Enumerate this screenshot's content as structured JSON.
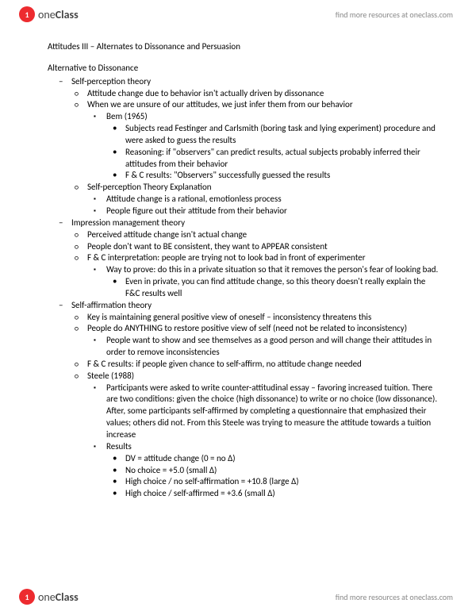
{
  "brand": {
    "logo_char": "1",
    "name_one": "one",
    "name_class": "Class"
  },
  "resources_link": "find more resources at oneclass.com",
  "title": "Attitudes III – Alternates to Dissonance and Persuasion",
  "section": "Alternative to Dissonance",
  "items": [
    {
      "lvl": 1,
      "b": "dash",
      "t": "Self-perception theory"
    },
    {
      "lvl": 2,
      "b": "circ",
      "t": "Attitude change due to behavior isn't actually driven by dissonance"
    },
    {
      "lvl": 2,
      "b": "circ",
      "t": "When we are unsure of our attitudes, we just infer them from our behavior"
    },
    {
      "lvl": 3,
      "b": "sq",
      "t": "Bem (1965)"
    },
    {
      "lvl": 4,
      "b": "dot",
      "t": "Subjects read Festinger and Carlsmith (boring task and lying experiment) procedure and were asked to guess the results"
    },
    {
      "lvl": 4,
      "b": "dot",
      "t": "Reasoning: if \"observers\" can predict results, actual subjects probably inferred their attitudes from their behavior"
    },
    {
      "lvl": 4,
      "b": "dot",
      "t": "F & C results: \"Observers\" successfully guessed the results"
    },
    {
      "lvl": 2,
      "b": "circ",
      "t": "Self-perception Theory Explanation"
    },
    {
      "lvl": 3,
      "b": "sq",
      "t": "Attitude change is a rational, emotionless process"
    },
    {
      "lvl": 3,
      "b": "sq",
      "t": "People figure out their attitude from their behavior"
    },
    {
      "lvl": 1,
      "b": "dash",
      "t": "Impression management theory"
    },
    {
      "lvl": 2,
      "b": "circ",
      "t": "Perceived attitude change isn't actual change"
    },
    {
      "lvl": 2,
      "b": "circ",
      "t": "People don't want to BE consistent, they want to APPEAR consistent"
    },
    {
      "lvl": 2,
      "b": "circ",
      "t": "F & C interpretation: people are trying not to look bad in front of experimenter"
    },
    {
      "lvl": 3,
      "b": "sq",
      "t": "Way to prove: do this in a private situation so that it removes the person's fear of looking bad."
    },
    {
      "lvl": 4,
      "b": "dot",
      "t": "Even in private, you can find attitude change, so this theory doesn't really explain the F&C results well"
    },
    {
      "lvl": 1,
      "b": "dash",
      "t": "Self-affirmation theory"
    },
    {
      "lvl": 2,
      "b": "circ",
      "t": "Key is maintaining general positive view of oneself – inconsistency threatens this"
    },
    {
      "lvl": 2,
      "b": "circ",
      "t": "People do ANYTHING to restore positive view of self (need not be related to inconsistency)"
    },
    {
      "lvl": 3,
      "b": "sq",
      "t": "People want to show and see themselves as a good person and will change their attitudes in order to remove inconsistencies"
    },
    {
      "lvl": 2,
      "b": "circ",
      "t": "F & C results: if people given chance to self-affirm, no attitude change needed"
    },
    {
      "lvl": 2,
      "b": "circ",
      "t": "Steele (1988)"
    },
    {
      "lvl": 3,
      "b": "sq",
      "t": "Participants were asked to write counter-attitudinal essay – favoring increased tuition. There are two conditions: given the choice (high dissonance) to write or no choice (low dissonance). After, some participants self-affirmed by completing a questionnaire that emphasized their values; others did not. From this Steele was trying to measure the attitude towards a tuition increase"
    },
    {
      "lvl": 3,
      "b": "sq",
      "t": "Results"
    },
    {
      "lvl": 4,
      "b": "dot",
      "t": "DV = attitude change (0 = no Δ)"
    },
    {
      "lvl": 4,
      "b": "dot",
      "t": "No choice = +5.0 (small Δ)"
    },
    {
      "lvl": 4,
      "b": "dot",
      "t": "High choice / no self-affirmation = +10.8 (large Δ)"
    },
    {
      "lvl": 4,
      "b": "dot",
      "t": "High choice / self-affirmed = +3.6 (small Δ)"
    }
  ]
}
